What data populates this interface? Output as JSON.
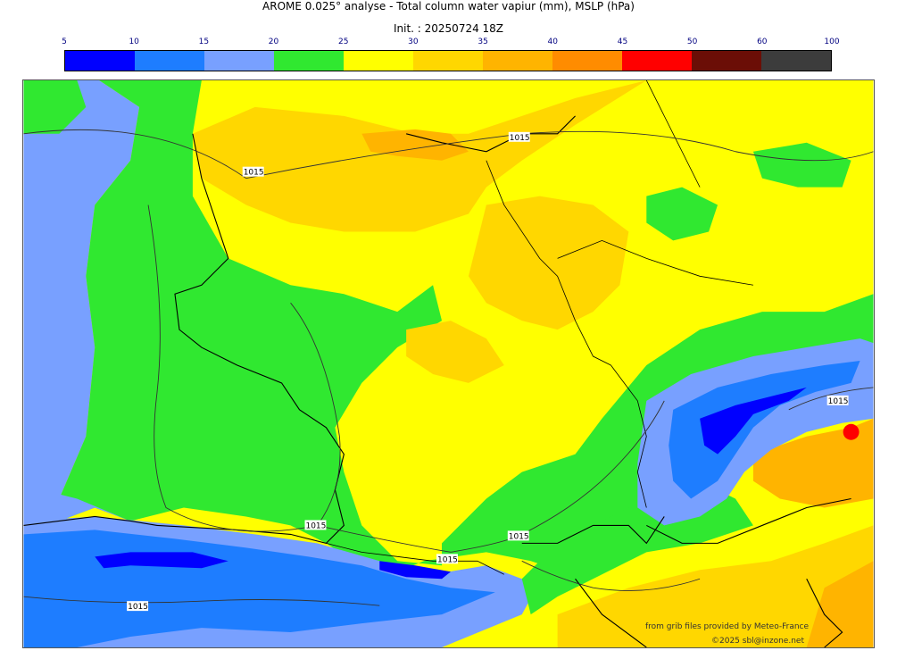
{
  "title_line1": "AROME 0.025° analyse - Total column water vapiur (mm), MSLP (hPa)",
  "title_line2": "Init. : 20250724 18Z",
  "colorbar": {
    "ticks": [
      "5",
      "10",
      "15",
      "20",
      "25",
      "30",
      "35",
      "40",
      "45",
      "50",
      "60",
      "100"
    ],
    "colors": [
      "#0000ff",
      "#1e7dff",
      "#78a0ff",
      "#30e830",
      "#ffff00",
      "#ffd700",
      "#ffb400",
      "#ff8c00",
      "#ff0000",
      "#6b0e06",
      "#3c3c3c"
    ]
  },
  "isobar_label": "1015",
  "credits": {
    "line1": "from grib files provided by Meteo-France",
    "line2": "©2025 sbl@inzone.net"
  },
  "fields": {
    "low_blue": "#0000ff",
    "mid_blue": "#1e7dff",
    "light_blue": "#78a0ff",
    "green": "#30e830",
    "yellow": "#ffff00",
    "gold": "#ffd700",
    "orange": "#ffb400",
    "dark_orange": "#ff8c00",
    "red": "#ff0000"
  }
}
